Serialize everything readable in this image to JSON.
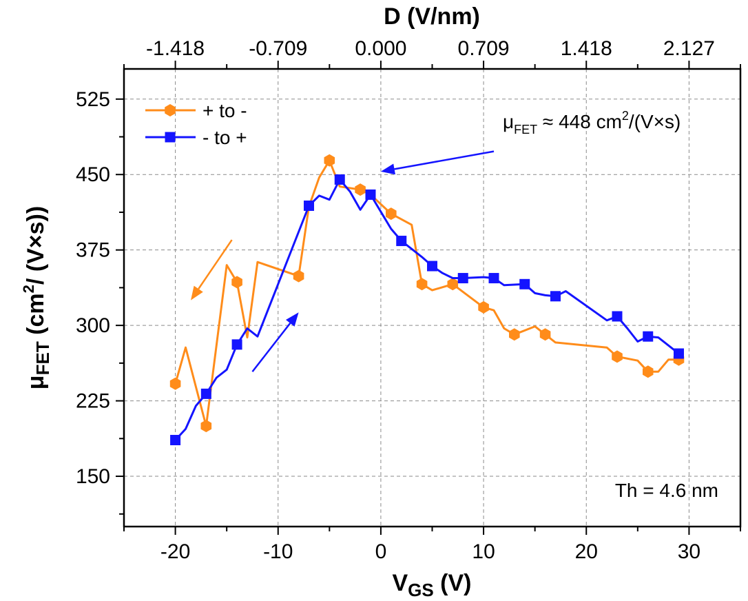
{
  "chart_data": {
    "type": "line",
    "title": "",
    "xlabel_main": "V",
    "xlabel_sub": "GS",
    "xlabel_unit": " (V)",
    "ylabel_main": "μ",
    "ylabel_sub": "FET",
    "ylabel_unit_pre": " (cm",
    "ylabel_unit_sup": "2",
    "ylabel_unit_post": "/ (V×s))",
    "top_xlabel": "D (V/nm)",
    "xlim": [
      -25,
      35
    ],
    "ylim": [
      100,
      555
    ],
    "x_ticks": [
      -20,
      -10,
      0,
      10,
      20,
      30
    ],
    "x_tick_labels": [
      "-20",
      "-10",
      "0",
      "10",
      "20",
      "30"
    ],
    "y_ticks": [
      150,
      225,
      300,
      375,
      450,
      525
    ],
    "y_tick_labels": [
      "150",
      "225",
      "300",
      "375",
      "450",
      "525"
    ],
    "top_ticks": [
      -20,
      -10,
      0,
      10,
      20,
      30
    ],
    "top_tick_labels": [
      "-1.418",
      "-0.709",
      "0.000",
      "0.709",
      "1.418",
      "2.127"
    ],
    "grid": true,
    "legend_position": "top-left",
    "series": [
      {
        "name": "+ to -",
        "color": "#ff8c1a",
        "marker": "hexagon",
        "x": [
          -20,
          -19,
          -17,
          -15,
          -14,
          -13,
          -12,
          -8,
          -7,
          -6,
          -5,
          -4,
          -2,
          -1,
          1,
          3,
          4,
          5,
          7,
          10,
          11,
          12,
          13,
          15,
          16,
          17,
          22,
          23,
          25,
          26,
          27,
          28,
          29
        ],
        "y": [
          242,
          278,
          200,
          360,
          343,
          288,
          363,
          349,
          418,
          447,
          464,
          438,
          435,
          430,
          411,
          400,
          341,
          335,
          341,
          318,
          315,
          297,
          291,
          299,
          291,
          283,
          278,
          269,
          265,
          254,
          254,
          266,
          266
        ],
        "markers_x": [
          -20,
          -17,
          -14,
          -8,
          -5,
          -2,
          1,
          4,
          7,
          10,
          13,
          16,
          23,
          26,
          29
        ],
        "markers_y": [
          242,
          200,
          343,
          349,
          464,
          435,
          411,
          341,
          341,
          318,
          291,
          291,
          269,
          254,
          266
        ]
      },
      {
        "name": "- to +",
        "color": "#1414ff",
        "marker": "square",
        "x": [
          -20,
          -19,
          -18,
          -17,
          -16,
          -15,
          -14,
          -13,
          -12,
          -7,
          -6,
          -5,
          -4,
          -3,
          -2,
          -1,
          0,
          1,
          2,
          3,
          4,
          5,
          6,
          7,
          8,
          10,
          11,
          12,
          14,
          15,
          16,
          17,
          18,
          22,
          23,
          24,
          25,
          26,
          27,
          29
        ],
        "y": [
          186,
          197,
          220,
          232,
          248,
          256,
          281,
          297,
          289,
          419,
          429,
          425,
          445,
          433,
          415,
          430,
          413,
          396,
          384,
          376,
          368,
          359,
          352,
          347,
          347,
          348,
          347,
          340,
          341,
          332,
          330,
          329,
          334,
          305,
          309,
          297,
          284,
          289,
          288,
          272
        ],
        "markers_x": [
          -20,
          -17,
          -14,
          -7,
          -4,
          -1,
          2,
          5,
          8,
          11,
          14,
          17,
          23,
          26,
          29
        ],
        "markers_y": [
          186,
          232,
          281,
          419,
          445,
          430,
          384,
          359,
          347,
          347,
          341,
          329,
          309,
          289,
          272
        ]
      }
    ],
    "annotations": {
      "mobility_pre": "μ",
      "mobility_sub": "FET",
      "mobility_mid": " ≈ 448 cm",
      "mobility_sup": "2",
      "mobility_post": "/(V×s)",
      "mobility_value": 448,
      "thickness": "Th  = 4.6 nm"
    },
    "arrows": [
      {
        "color": "#1414ff",
        "from": [
          11,
          473
        ],
        "to": [
          0,
          453
        ]
      },
      {
        "color": "#ff8c1a",
        "from": [
          -14.5,
          385
        ],
        "to": [
          -18.5,
          325
        ]
      },
      {
        "color": "#1414ff",
        "from": [
          -12.5,
          254
        ],
        "to": [
          -8,
          313
        ]
      }
    ]
  }
}
